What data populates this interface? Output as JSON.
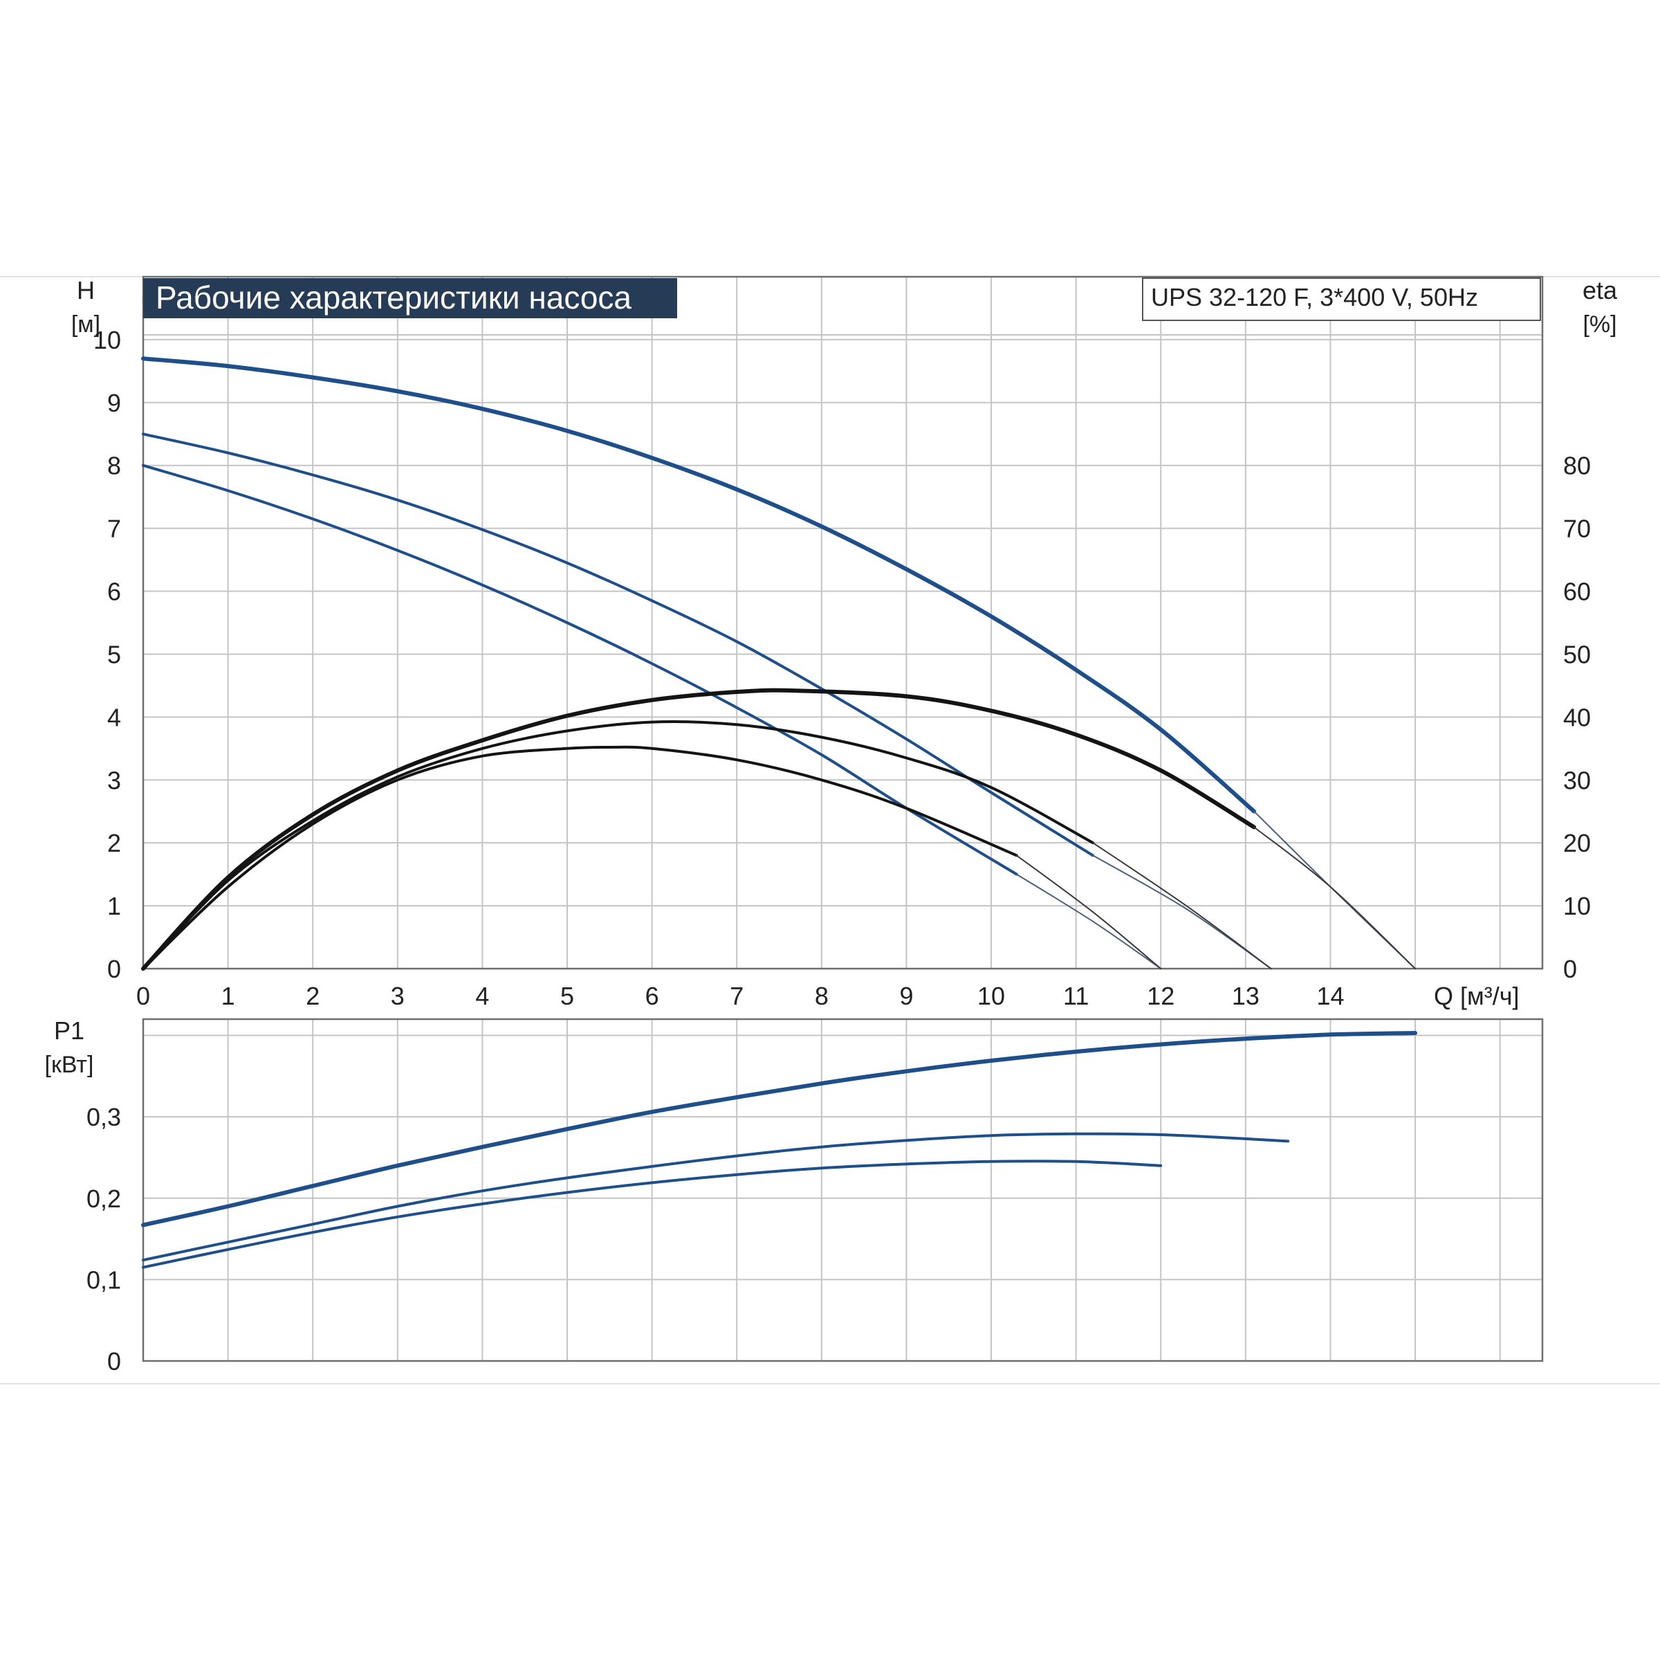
{
  "chart_title": "Рабочие характеристики насоса",
  "model_label": "UPS 32-120 F, 3*400 V, 50Hz",
  "colors": {
    "pump": "#1e4f8a",
    "efficiency": "#141414",
    "grid": "#c4c4c4",
    "title_bg": "#263b55",
    "title_fg": "#ffffff"
  },
  "chart_data": [
    {
      "type": "line",
      "title": "Рабочие характеристики насоса",
      "ylabel_top": "H",
      "ylabel_bottom": "[м]",
      "y2label_top": "eta",
      "y2label_bottom": "[%]",
      "xlabel": "Q [м³/ч]",
      "xlim": [
        0,
        16.5
      ],
      "ylim": [
        0,
        11
      ],
      "y2lim": [
        0,
        110
      ],
      "x_ticks": [
        "0",
        "1",
        "2",
        "3",
        "4",
        "5",
        "6",
        "7",
        "8",
        "9",
        "10",
        "11",
        "12",
        "13",
        "14"
      ],
      "y_ticks": [
        "0",
        "1",
        "2",
        "3",
        "4",
        "5",
        "6",
        "7",
        "8",
        "9",
        "10"
      ],
      "y2_ticks": [
        "0",
        "10",
        "20",
        "30",
        "40",
        "50",
        "60",
        "70",
        "80"
      ],
      "grid": true,
      "series": [
        {
          "role": "head",
          "axis": "y",
          "x": [
            0,
            1,
            2,
            3,
            4,
            5,
            6,
            7,
            8,
            9,
            10,
            11,
            12,
            13.1
          ],
          "y": [
            9.7,
            9.58,
            9.4,
            9.18,
            8.9,
            8.55,
            8.12,
            7.62,
            7.03,
            6.35,
            5.6,
            4.75,
            3.8,
            2.5
          ]
        },
        {
          "role": "head",
          "axis": "y",
          "x": [
            0,
            1,
            2,
            3,
            4,
            5,
            6,
            7,
            8,
            9,
            10,
            11.2
          ],
          "y": [
            8.5,
            8.2,
            7.85,
            7.45,
            6.98,
            6.45,
            5.85,
            5.2,
            4.45,
            3.65,
            2.8,
            1.8
          ]
        },
        {
          "role": "head",
          "axis": "y",
          "x": [
            0,
            1,
            2,
            3,
            4,
            5,
            6,
            7,
            8,
            9,
            10.3
          ],
          "y": [
            8,
            7.6,
            7.15,
            6.65,
            6.1,
            5.5,
            4.85,
            4.15,
            3.4,
            2.55,
            1.5
          ]
        },
        {
          "role": "head-extension",
          "axis": "y",
          "x": [
            13.1,
            14,
            15
          ],
          "y": [
            2.5,
            1.3,
            0
          ]
        },
        {
          "role": "head-extension",
          "axis": "y",
          "x": [
            11.2,
            12.3,
            13.3
          ],
          "y": [
            1.8,
            0.95,
            0
          ]
        },
        {
          "role": "head-extension",
          "axis": "y",
          "x": [
            10.3,
            11.2,
            12
          ],
          "y": [
            1.5,
            0.75,
            0
          ]
        },
        {
          "role": "efficiency",
          "axis": "y2",
          "x": [
            0,
            1,
            2,
            3,
            4,
            5,
            6,
            7,
            7.7,
            9,
            10,
            11,
            12,
            13.1
          ],
          "y": [
            0,
            14.5,
            24.5,
            31.5,
            36.3,
            40.2,
            42.7,
            44,
            44.2,
            43.3,
            41,
            37.2,
            31.5,
            22.5
          ]
        },
        {
          "role": "efficiency",
          "axis": "y2",
          "x": [
            0,
            1,
            2,
            3,
            4,
            5,
            6,
            7,
            8,
            9,
            10,
            11.2
          ],
          "y": [
            0,
            14,
            23.5,
            30.5,
            35,
            37.8,
            39.2,
            38.8,
            36.8,
            33.5,
            28.8,
            20
          ]
        },
        {
          "role": "efficiency",
          "axis": "y2",
          "x": [
            0,
            1,
            2,
            3,
            4,
            5,
            5.5,
            6,
            7,
            8,
            9,
            10.3
          ],
          "y": [
            0,
            13,
            23,
            30,
            33.8,
            35,
            35.2,
            35,
            33.2,
            30,
            25.5,
            18
          ]
        },
        {
          "role": "efficiency-extension",
          "axis": "y2",
          "x": [
            13.1,
            14,
            15
          ],
          "y": [
            22.5,
            13,
            0
          ]
        },
        {
          "role": "efficiency-extension",
          "axis": "y2",
          "x": [
            11.2,
            12.3,
            13.3
          ],
          "y": [
            20,
            10,
            0
          ]
        },
        {
          "role": "efficiency-extension",
          "axis": "y2",
          "x": [
            10.3,
            11.2,
            12
          ],
          "y": [
            18,
            9,
            0
          ]
        }
      ]
    },
    {
      "type": "line",
      "ylabel_top": "P1",
      "ylabel_bottom": "[кВт]",
      "xlim": [
        0,
        16.5
      ],
      "ylim": [
        0,
        0.42
      ],
      "y_ticks": [
        "0",
        "0,1",
        "0,2",
        "0,3"
      ],
      "y_tick_values": [
        0,
        0.1,
        0.2,
        0.3
      ],
      "grid": true,
      "series": [
        {
          "role": "power",
          "x": [
            0,
            1,
            2,
            3,
            4,
            5,
            6,
            7,
            8,
            9,
            10,
            11,
            12,
            13,
            14,
            15
          ],
          "y": [
            0.167,
            0.19,
            0.215,
            0.24,
            0.263,
            0.285,
            0.306,
            0.324,
            0.341,
            0.356,
            0.369,
            0.38,
            0.389,
            0.396,
            0.401,
            0.403
          ]
        },
        {
          "role": "power",
          "x": [
            0,
            1,
            2,
            3,
            4,
            5,
            6,
            7,
            8,
            9,
            10,
            11,
            12,
            13,
            13.5
          ],
          "y": [
            0.124,
            0.146,
            0.168,
            0.19,
            0.209,
            0.225,
            0.239,
            0.252,
            0.263,
            0.271,
            0.277,
            0.279,
            0.278,
            0.273,
            0.27
          ]
        },
        {
          "role": "power",
          "x": [
            0,
            1,
            2,
            3,
            4,
            5,
            6,
            7,
            8,
            9,
            10,
            11,
            12
          ],
          "y": [
            0.115,
            0.137,
            0.158,
            0.177,
            0.193,
            0.207,
            0.219,
            0.229,
            0.237,
            0.242,
            0.245,
            0.245,
            0.24
          ]
        }
      ]
    }
  ]
}
